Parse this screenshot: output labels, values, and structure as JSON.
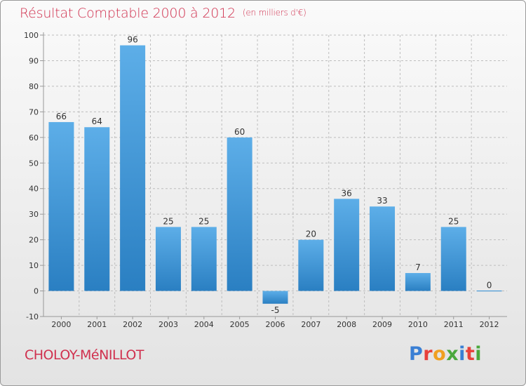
{
  "header": {
    "title": "Résultat Comptable 2000 à 2012",
    "subtitle": "(en milliers d'€)"
  },
  "footer": {
    "commune": "CHOLOY-MéNILLOT",
    "logo_text": "Proxiti",
    "logo_colors": [
      "#3a7fd4",
      "#e8403a",
      "#f0a020",
      "#4aa83c",
      "#3a7fd4",
      "#e8403a",
      "#4aa83c"
    ]
  },
  "colors": {
    "title": "#d0304e",
    "bar_light": "#5daee8",
    "bar_dark": "#2a7fc2",
    "axis": "#999999",
    "grid": "#bdbdbd"
  },
  "chart_data": {
    "type": "bar",
    "title": "Résultat Comptable 2000 à 2012",
    "ylabel": "(en milliers d'€)",
    "xlabel": "",
    "categories": [
      "2000",
      "2001",
      "2002",
      "2003",
      "2004",
      "2005",
      "2006",
      "2007",
      "2008",
      "2009",
      "2010",
      "2011",
      "2012"
    ],
    "values": [
      66,
      64,
      96,
      25,
      25,
      60,
      -5,
      20,
      36,
      33,
      7,
      25,
      0
    ],
    "ylim": [
      -10,
      100
    ],
    "yticks": [
      -10,
      0,
      10,
      20,
      30,
      40,
      50,
      60,
      70,
      80,
      90,
      100
    ],
    "grid": true
  }
}
